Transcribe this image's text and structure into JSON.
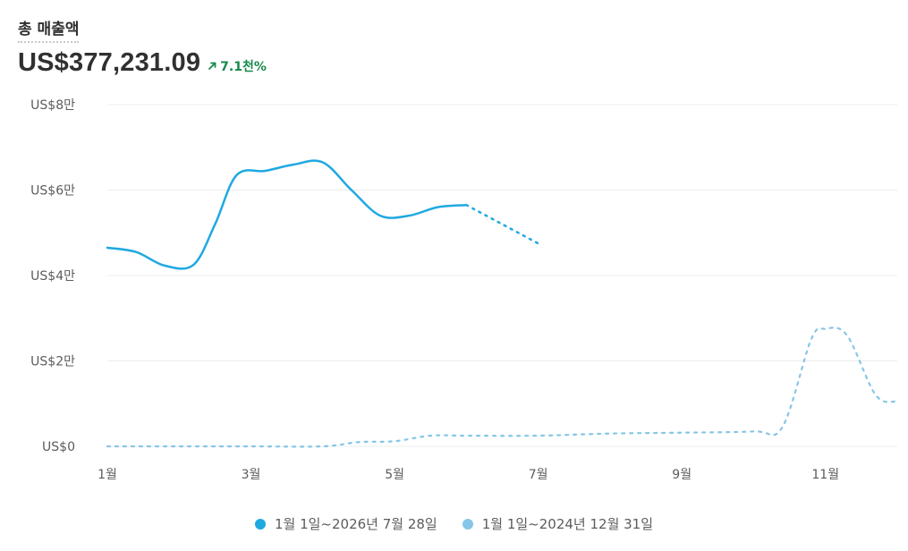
{
  "metric": {
    "title": "총 매출액",
    "value": "US$377,231.09",
    "change": "7.1천%",
    "change_color": "#168a4c",
    "change_icon": "arrow-up-right-icon"
  },
  "chart_data": {
    "type": "line",
    "title": "",
    "xlabel": "",
    "ylabel": "",
    "x_ticks": [
      "1월",
      "3월",
      "5월",
      "7월",
      "9월",
      "11월"
    ],
    "y_ticks": [
      "US$0",
      "US$2만",
      "US$4만",
      "US$6만",
      "US$8만"
    ],
    "ylim": [
      0,
      80000
    ],
    "xlim": [
      1,
      12
    ],
    "grid": true,
    "legend": "bottom-center",
    "series": [
      {
        "name": "1월 1일~2026년 7월 28일",
        "color": "#1fa9e1",
        "x": [
          1,
          1.4,
          1.8,
          2.2,
          2.5,
          2.8,
          3.2,
          3.6,
          4,
          4.4,
          4.8,
          5.2,
          5.6,
          6,
          6.5,
          7
        ],
        "y": [
          46500,
          45500,
          42300,
          42500,
          52000,
          63500,
          64500,
          66000,
          66500,
          60000,
          54000,
          54000,
          56000,
          56500,
          52000,
          47500
        ],
        "solid_until": 6
      },
      {
        "name": "1월 1일~2024년 12월 31일",
        "color": "#86c6e6",
        "x": [
          1,
          2,
          3,
          4,
          4.5,
          5,
          5.5,
          6,
          7,
          8,
          9,
          10,
          10.4,
          10.8,
          11,
          11.3,
          11.7,
          12
        ],
        "y": [
          0,
          0,
          0,
          0,
          1000,
          1200,
          2500,
          2500,
          2500,
          3000,
          3200,
          3500,
          4500,
          25000,
          27500,
          26000,
          12000,
          10500
        ],
        "solid_until": null
      }
    ]
  }
}
